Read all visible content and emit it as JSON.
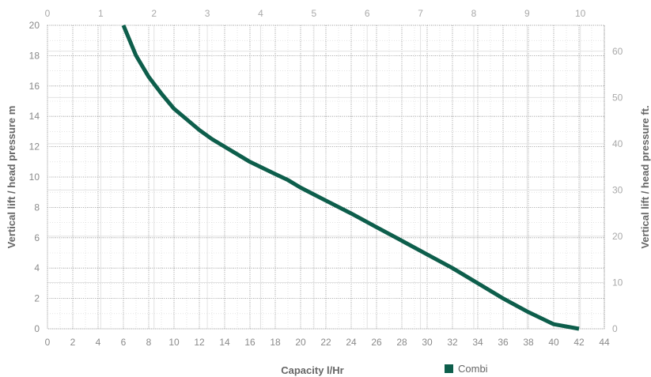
{
  "chart_data": {
    "type": "line",
    "xlabel": "Capacity l/Hr",
    "ylabel": "Vertical lift / head pressure m",
    "y2label": "Vertical lift / head pressure ft.",
    "xlim": [
      0,
      44
    ],
    "ylim": [
      0,
      20
    ],
    "x_ticks": [
      "0",
      "2",
      "4",
      "6",
      "8",
      "10",
      "12",
      "14",
      "16",
      "18",
      "20",
      "22",
      "24",
      "26",
      "28",
      "30",
      "32",
      "34",
      "36",
      "38",
      "40",
      "42",
      "44"
    ],
    "y_ticks": [
      "0",
      "2",
      "4",
      "6",
      "8",
      "10",
      "12",
      "14",
      "16",
      "18",
      "20"
    ],
    "x2_ticks": [
      "0",
      "1",
      "2",
      "3",
      "4",
      "5",
      "6",
      "7",
      "8",
      "9",
      "10"
    ],
    "x2_max": 10.45,
    "y2_ticks": [
      "0",
      "10",
      "20",
      "30",
      "40",
      "50",
      "60"
    ],
    "y2_max": 65.6,
    "grid": true,
    "legend_position": "bottom",
    "series": [
      {
        "name": "Combi",
        "color": "#0d5e4b",
        "points": [
          [
            6.0,
            20.0
          ],
          [
            7.0,
            18.0
          ],
          [
            8.0,
            16.6
          ],
          [
            9.0,
            15.5
          ],
          [
            10.0,
            14.5
          ],
          [
            11.0,
            13.8
          ],
          [
            12.0,
            13.1
          ],
          [
            13.0,
            12.5
          ],
          [
            14.0,
            12.0
          ],
          [
            15.0,
            11.5
          ],
          [
            16.0,
            11.0
          ],
          [
            17.0,
            10.6
          ],
          [
            18.0,
            10.2
          ],
          [
            19.0,
            9.8
          ],
          [
            20.0,
            9.3
          ],
          [
            22.0,
            8.45
          ],
          [
            24.0,
            7.6
          ],
          [
            26.0,
            6.7
          ],
          [
            28.0,
            5.8
          ],
          [
            30.0,
            4.9
          ],
          [
            32.0,
            4.0
          ],
          [
            34.0,
            3.0
          ],
          [
            36.0,
            2.0
          ],
          [
            38.0,
            1.1
          ],
          [
            40.0,
            0.3
          ],
          [
            42.0,
            0.0
          ]
        ]
      }
    ]
  }
}
